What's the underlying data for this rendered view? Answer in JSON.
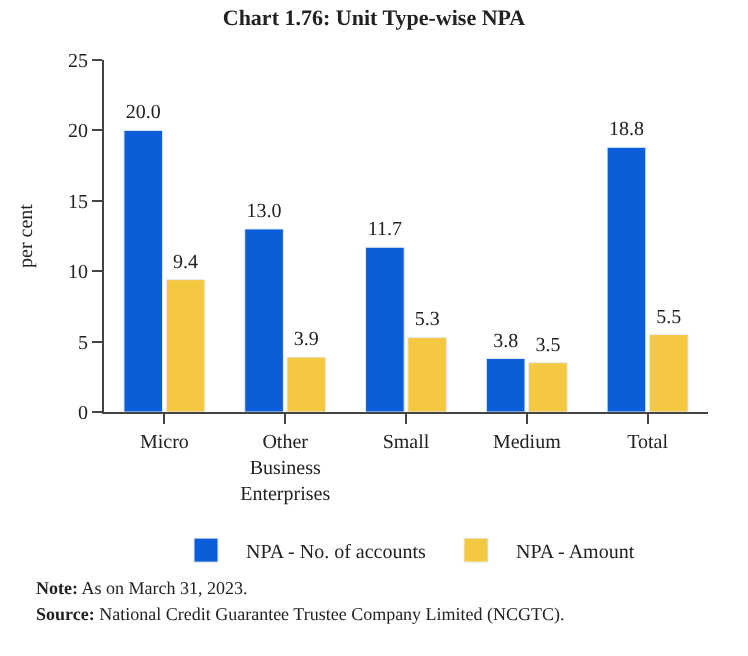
{
  "chart_data": {
    "type": "bar",
    "title": "Chart 1.76: Unit Type-wise NPA",
    "ylabel": "per cent",
    "categories": [
      "Micro",
      "Other Business Enterprises",
      "Small",
      "Medium",
      "Total"
    ],
    "series": [
      {
        "name": "NPA - No. of accounts",
        "color": "#0b5ed7",
        "values": [
          20.0,
          13.0,
          11.7,
          3.8,
          18.8
        ],
        "value_labels": [
          "20.0",
          "13.0",
          "11.7",
          "3.8",
          "18.8"
        ]
      },
      {
        "name": "NPA - Amount",
        "color": "#f5c842",
        "values": [
          9.4,
          3.9,
          5.3,
          3.5,
          5.5
        ],
        "value_labels": [
          "9.4",
          "3.9",
          "5.3",
          "3.5",
          "5.5"
        ]
      }
    ],
    "ylim": [
      0,
      25
    ],
    "yticks": [
      0,
      5,
      10,
      15,
      20,
      25
    ],
    "legend": "bottom",
    "annotations": [
      "Note: As on March 31, 2023.",
      "Source: National Credit Guarantee Trustee Company Limited (NCGTC)."
    ]
  }
}
